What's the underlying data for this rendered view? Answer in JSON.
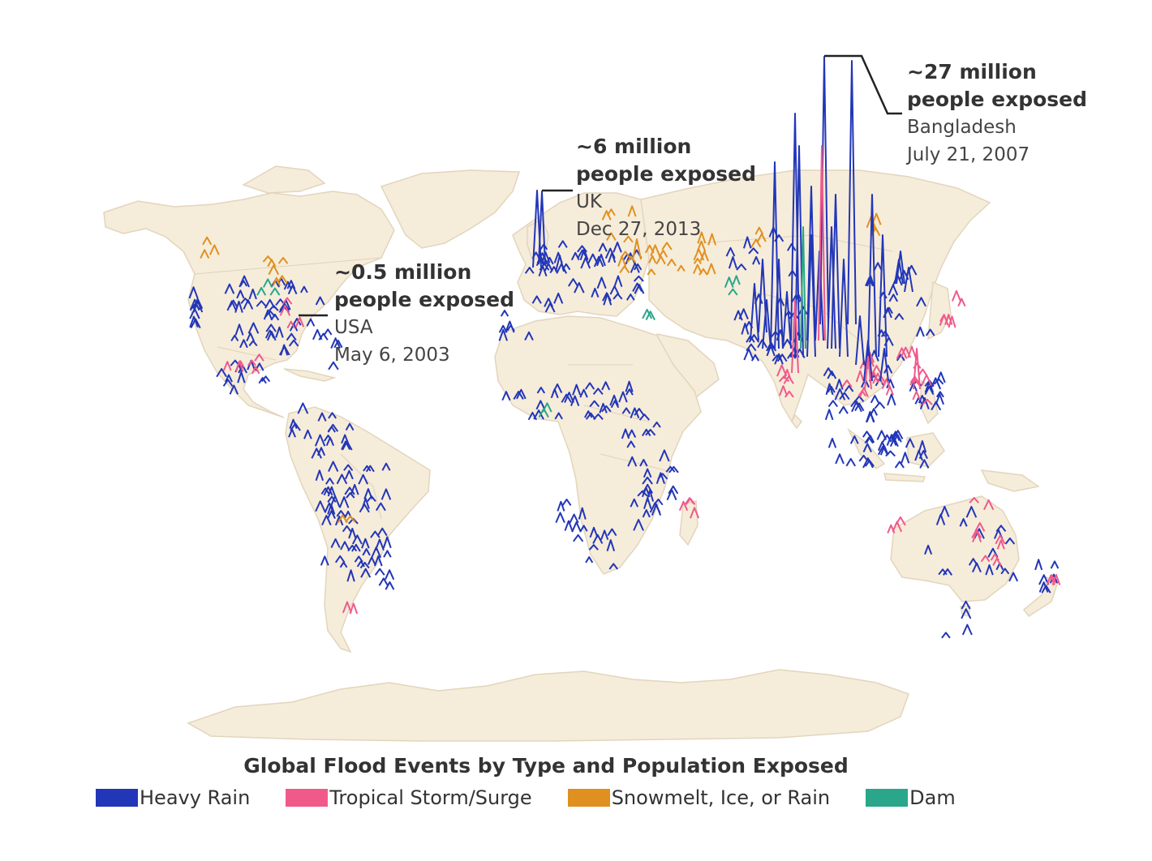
{
  "title": "Global Flood Events by Type and Population Exposed",
  "legend": [
    {
      "label": "Heavy Rain",
      "color": "#2236b8"
    },
    {
      "label": "Tropical Storm/Surge",
      "color": "#f05a8a"
    },
    {
      "label": "Snowmelt, Ice, or Rain",
      "color": "#e0901f"
    },
    {
      "label": "Dam",
      "color": "#2aa68a"
    }
  ],
  "colors": {
    "land": "#f6ecda",
    "border": "#e0d2b8",
    "ocean": "#ffffff"
  },
  "annotations": [
    {
      "id": "usa",
      "headline_1": "~0.5 million",
      "headline_2": "people exposed",
      "location": "USA",
      "date": "May 6, 2003"
    },
    {
      "id": "uk",
      "headline_1": "~6 million",
      "headline_2": "people exposed",
      "location": "UK",
      "date": "Dec 27, 2013"
    },
    {
      "id": "bangladesh",
      "headline_1": "~27 million",
      "headline_2": "people exposed",
      "location": "Bangladesh",
      "date": "July 21, 2007"
    }
  ]
}
